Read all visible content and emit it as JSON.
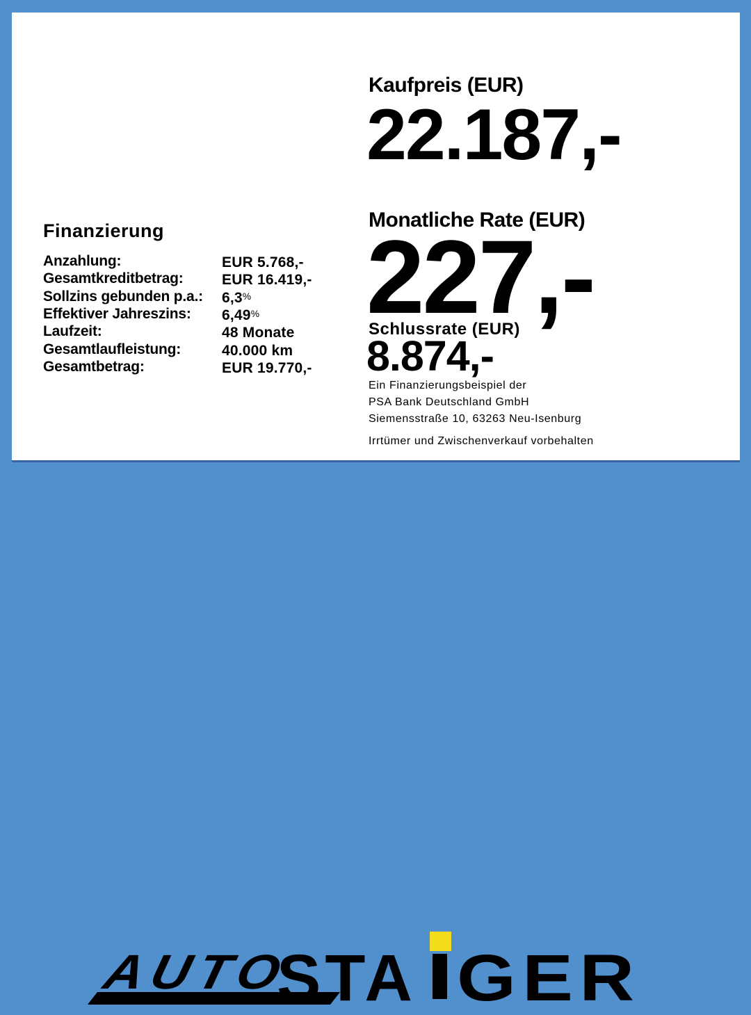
{
  "colors": {
    "background_blue": "#5290CD",
    "panel_white": "#FFFFFF",
    "text_black": "#000000",
    "logo_yellow": "#F2DC1B"
  },
  "financing": {
    "title": "Finanzierung",
    "rows": [
      {
        "label": "Anzahlung:",
        "value": "EUR 5.768,-"
      },
      {
        "label": "Gesamtkreditbetrag:",
        "value": "EUR 16.419,-"
      },
      {
        "label": "Sollzins gebunden p.a.:",
        "value": "6,3",
        "pct": "%"
      },
      {
        "label": "Effektiver Jahreszins:",
        "value": "6,49",
        "pct": "%"
      },
      {
        "label": "Laufzeit:",
        "value": "48 Monate"
      },
      {
        "label": "Gesamtlaufleistung:",
        "value": "40.000 km"
      },
      {
        "label": "Gesamtbetrag:",
        "value": "EUR 19.770,-"
      }
    ]
  },
  "offer": {
    "kaufpreis": {
      "label": "Kaufpreis (EUR)",
      "value": "22.187,-"
    },
    "monatliche_rate": {
      "label": "Monatliche Rate (EUR)",
      "value": "227,-"
    },
    "schlussrate": {
      "label": "Schlussrate (EUR)",
      "value": "8.874,-"
    },
    "provider_lines": [
      "Ein Finanzierungsbeispiel der",
      "PSA Bank Deutschland GmbH",
      "Siemensstraße 10, 63263 Neu-Isenburg"
    ],
    "disclaimer": "Irrtümer und Zwischenverkauf vorbehalten"
  },
  "logo": {
    "brand": "AUTO STAIGER",
    "word_auto": "AUTO",
    "staiger_prefix": "STA",
    "staiger_suffix": "GER"
  }
}
